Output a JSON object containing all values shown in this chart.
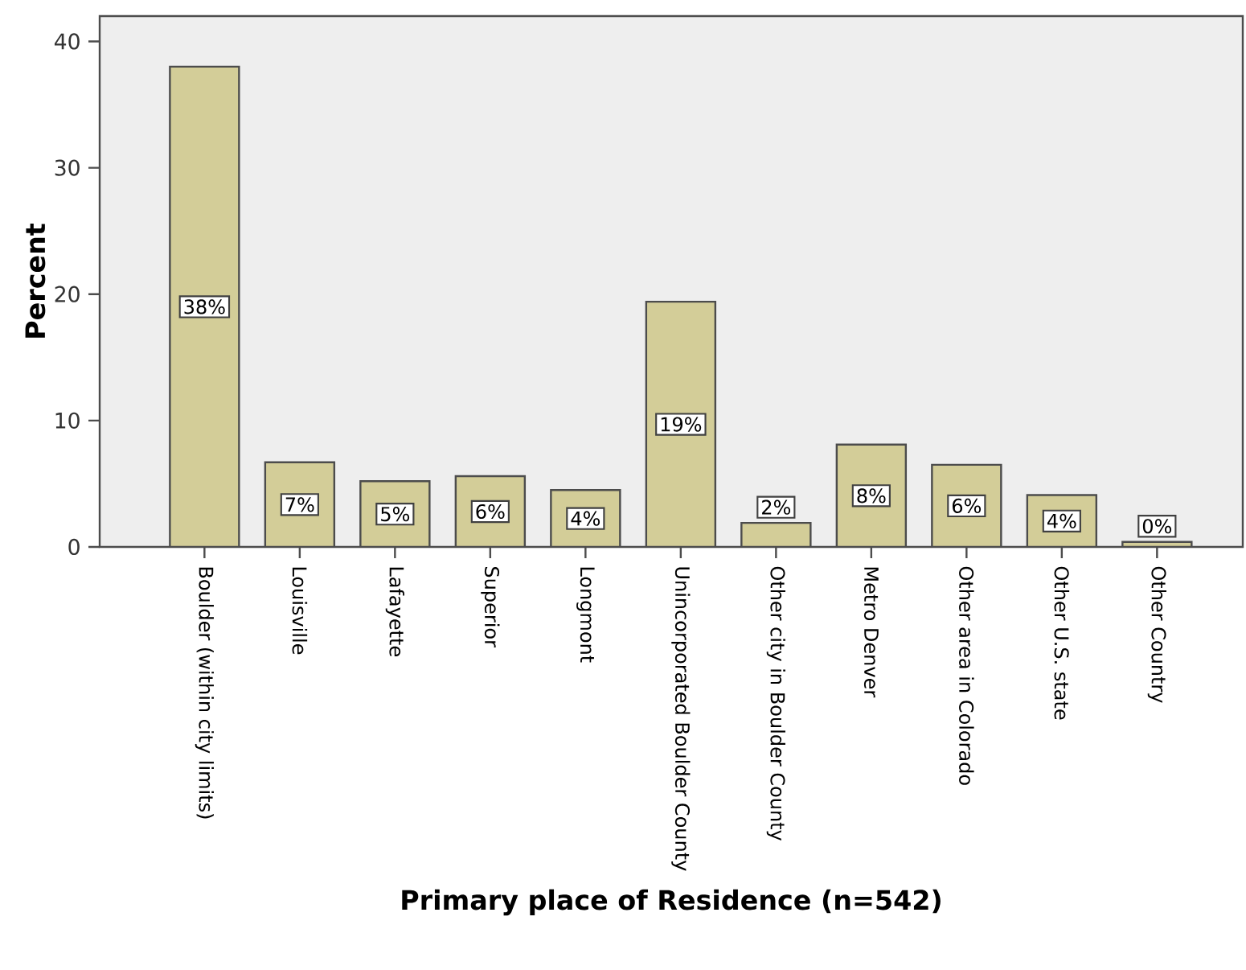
{
  "chart_data": {
    "type": "bar",
    "xlabel": "Primary place of Residence (n=542)",
    "ylabel": "Percent",
    "categories": [
      "Boulder (within city limits)",
      "Louisville",
      "Lafayette",
      "Superior",
      "Longmont",
      "Unincorporated Boulder County",
      "Other city in Boulder County",
      "Metro Denver",
      "Other area in Colorado",
      "Other U.S. state",
      "Other Country"
    ],
    "values": [
      38.0,
      6.7,
      5.2,
      5.6,
      4.5,
      19.4,
      1.9,
      8.1,
      6.5,
      4.1,
      0.4
    ],
    "value_labels": [
      "38%",
      "7%",
      "5%",
      "6%",
      "4%",
      "19%",
      "2%",
      "8%",
      "6%",
      "4%",
      "0%"
    ],
    "color": "#d3cd98",
    "ylim": [
      0,
      42
    ],
    "yticks": [
      0,
      10,
      20,
      30,
      40
    ],
    "grid": false
  }
}
